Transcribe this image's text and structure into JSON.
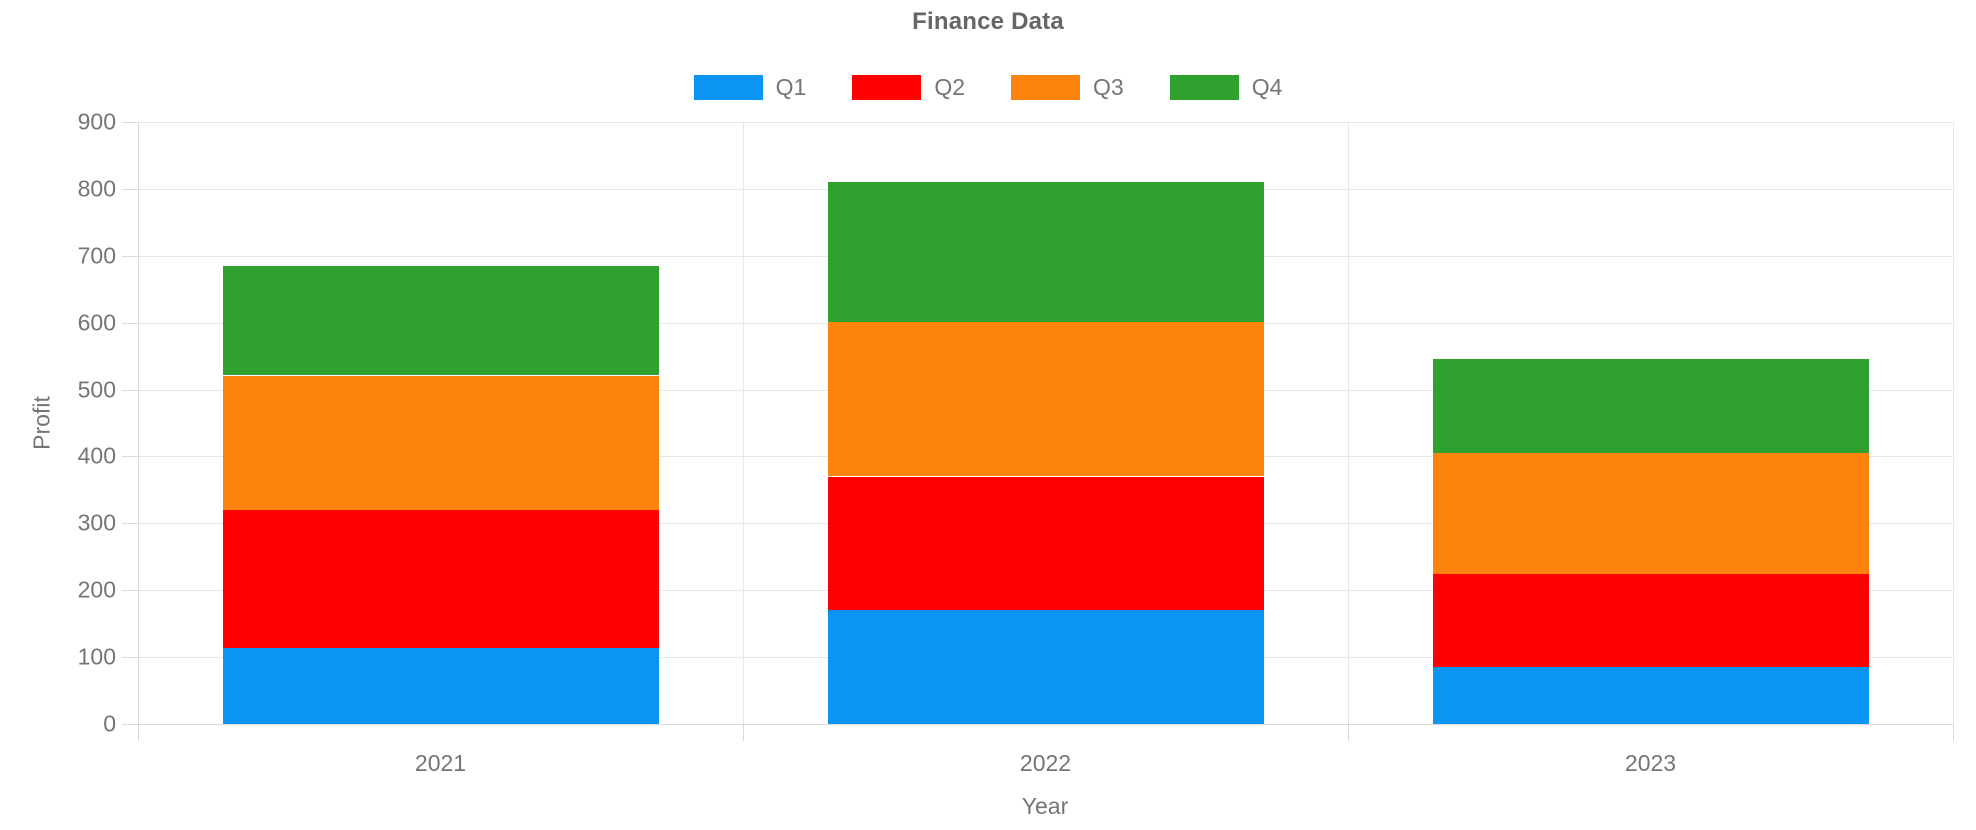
{
  "chart_data": {
    "type": "bar",
    "stacked": true,
    "title": "Finance Data",
    "xlabel": "Year",
    "ylabel": "Profit",
    "categories": [
      "2021",
      "2022",
      "2023"
    ],
    "series": [
      {
        "name": "Q1",
        "color": "#0B95F2",
        "values": [
          113,
          170,
          85
        ]
      },
      {
        "name": "Q2",
        "color": "#FE0000",
        "values": [
          207,
          200,
          139
        ]
      },
      {
        "name": "Q3",
        "color": "#FC840E",
        "values": [
          201,
          231,
          181
        ]
      },
      {
        "name": "Q4",
        "color": "#2EA12E",
        "values": [
          163,
          210,
          140
        ]
      }
    ],
    "totals": [
      684,
      811,
      545
    ],
    "ylim": [
      0,
      900
    ],
    "yticks": [
      0,
      100,
      200,
      300,
      400,
      500,
      600,
      700,
      800,
      900
    ],
    "grid": true,
    "legend_position": "top",
    "bar_width_fraction": 0.72,
    "colors": {
      "text": "#757575",
      "title_text": "#666666",
      "gridline": "#E8E8E8",
      "axis_line": "#D9D9D9",
      "background": "#FFFFFF"
    }
  }
}
